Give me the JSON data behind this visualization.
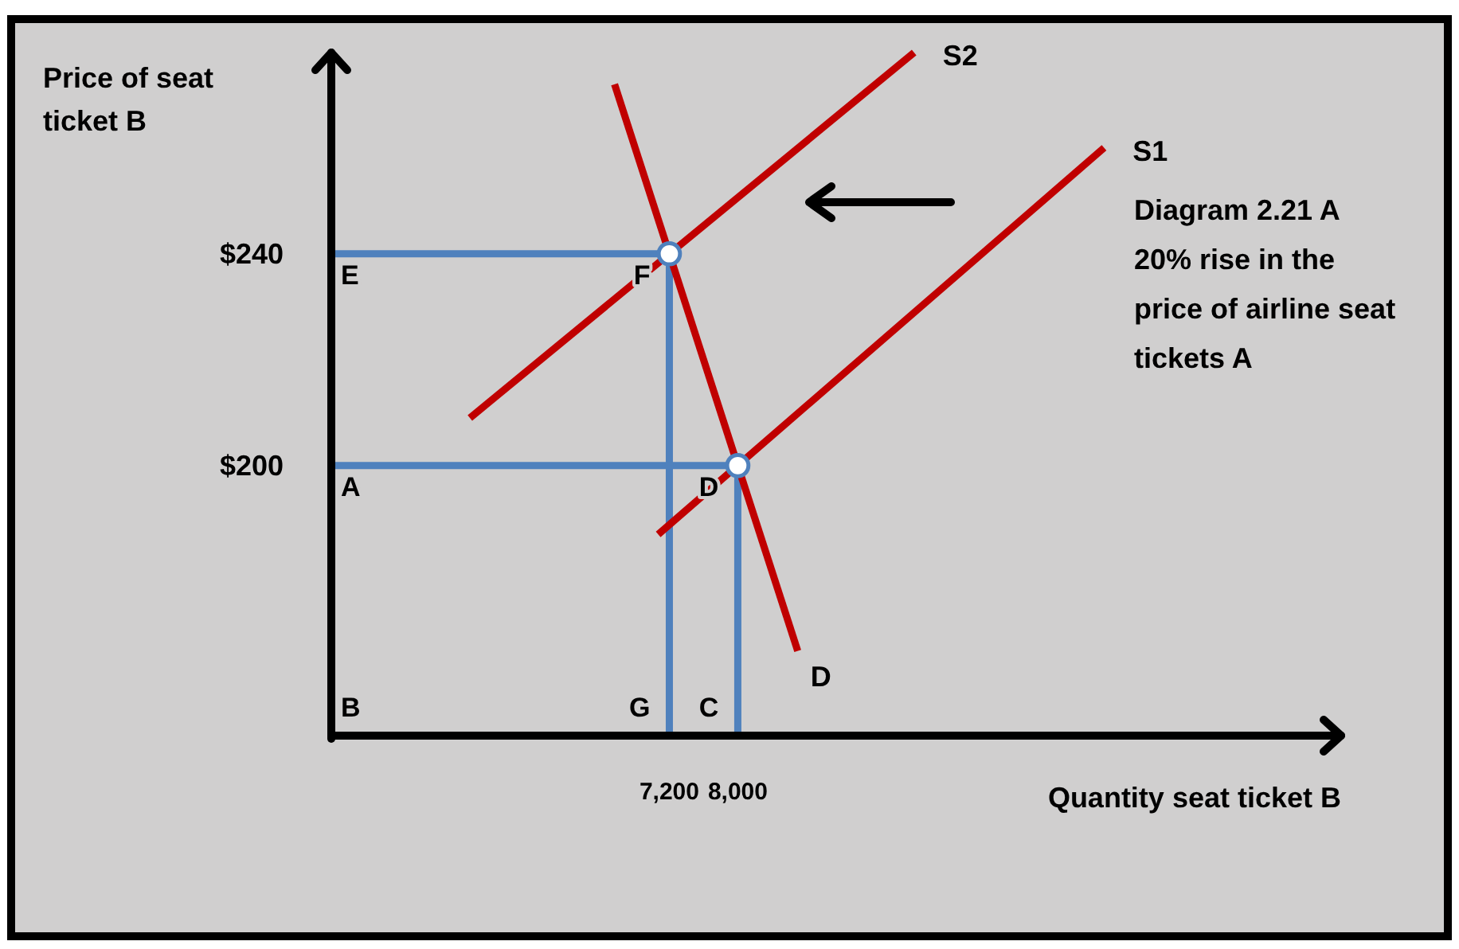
{
  "chart_data": {
    "type": "line",
    "xlabel": "Quantity seat ticket B",
    "ylabel": "Price of seat ticket B",
    "xlim": [
      3250,
      15050
    ],
    "ylim": [
      149,
      278
    ],
    "xticks": [
      {
        "value": 7200,
        "label": "7,200"
      },
      {
        "value": 8000,
        "label": "8,000"
      }
    ],
    "yticks": [
      {
        "value": 200,
        "label": "$200"
      },
      {
        "value": 240,
        "label": "$240"
      }
    ],
    "series": [
      {
        "color": "#4f81bd",
        "x": [
          3250,
          7200,
          7200
        ],
        "values": [
          240,
          240,
          149
        ]
      },
      {
        "color": "#4f81bd",
        "x": [
          3250,
          8000,
          8000
        ],
        "values": [
          200,
          200,
          149
        ]
      },
      {
        "name": "S1",
        "color": "#c00000",
        "x": [
          7070,
          12280
        ],
        "values": [
          187,
          260
        ]
      },
      {
        "name": "S2",
        "color": "#c00000",
        "x": [
          4870,
          10060
        ],
        "values": [
          209,
          278
        ]
      },
      {
        "name": "D",
        "color": "#c00000",
        "x": [
          6560,
          8700
        ],
        "values": [
          272,
          165
        ]
      },
      {
        "type": "scatter",
        "color": "#4f81bd",
        "marker": "circle",
        "x": [
          7200,
          8000
        ],
        "values": [
          240,
          200
        ]
      }
    ],
    "annotations": [
      {
        "text": "E",
        "x": 3250,
        "y": 240
      },
      {
        "text": "F",
        "x": 7200,
        "y": 240
      },
      {
        "text": "A",
        "x": 3250,
        "y": 200
      },
      {
        "text": "D",
        "x": 8000,
        "y": 200
      },
      {
        "text": "G",
        "x": 7200,
        "y": 149
      },
      {
        "text": "C",
        "x": 8000,
        "y": 149
      },
      "B",
      "Diagram 2.21 A",
      "20% rise in the price of airline seat tickets A"
    ]
  }
}
